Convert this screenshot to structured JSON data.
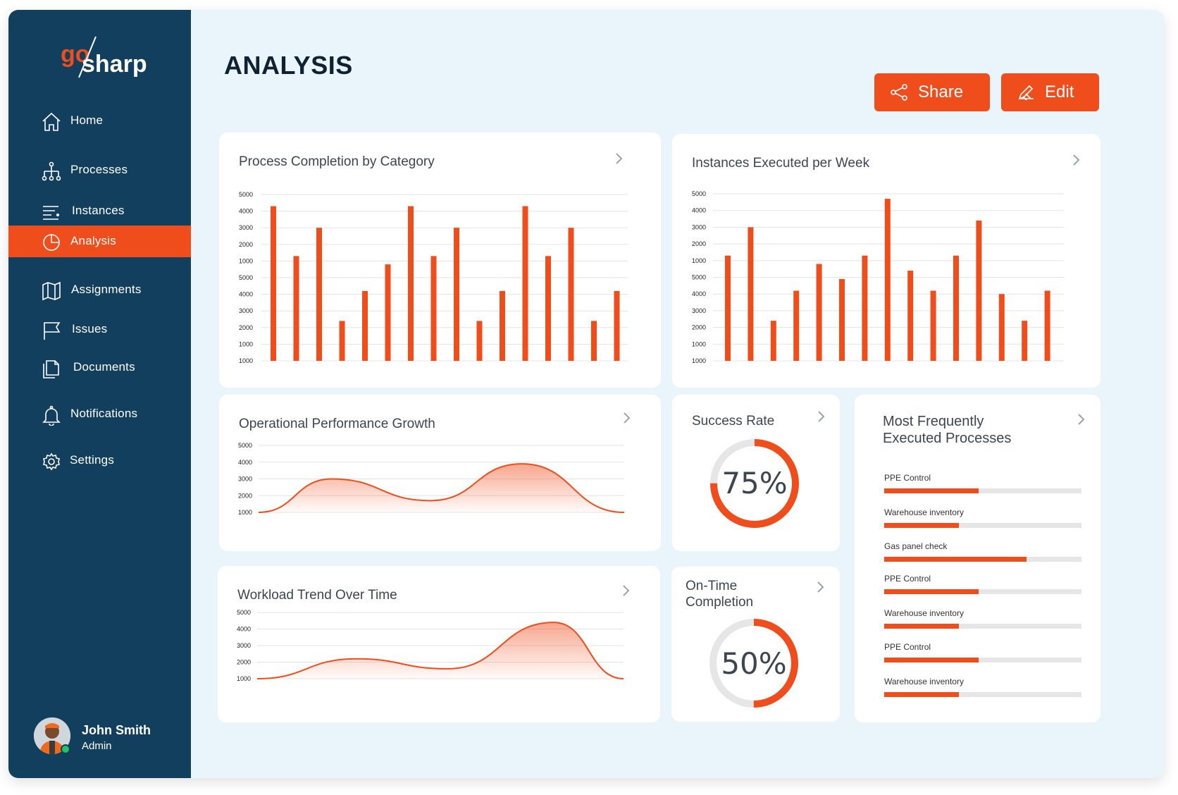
{
  "brand": {
    "logo_a": "go",
    "logo_b": "sharp",
    "accent": "#ef4d1c",
    "sidebar_bg": "#123f5e"
  },
  "page": {
    "title": "ANALYSIS"
  },
  "actions": {
    "share_label": "Share",
    "edit_label": "Edit"
  },
  "sidebar": {
    "items": [
      {
        "label": "Home",
        "icon": "home-icon"
      },
      {
        "label": "Processes",
        "icon": "process-tree-icon"
      },
      {
        "label": "Instances",
        "icon": "list-icon"
      },
      {
        "label": "Analysis",
        "icon": "pie-chart-icon",
        "active": true
      },
      {
        "label": "Assignments",
        "icon": "map-icon"
      },
      {
        "label": "Issues",
        "icon": "flag-icon"
      },
      {
        "label": "Documents",
        "icon": "documents-icon"
      },
      {
        "label": "Notifications",
        "icon": "bell-icon"
      },
      {
        "label": "Settings",
        "icon": "gear-icon"
      }
    ]
  },
  "user": {
    "name": "John Smith",
    "role": "Admin"
  },
  "cards": {
    "completion": {
      "title": "Process Completion by Category"
    },
    "instances": {
      "title": "Instances Executed per Week"
    },
    "growth": {
      "title": "Operational Performance Growth"
    },
    "workload": {
      "title": "Workload Trend Over Time"
    },
    "success": {
      "title": "Success Rate",
      "value": "75%",
      "fraction": 0.75
    },
    "ontime": {
      "title_line1": "On-Time",
      "title_line2": "Completion",
      "value": "50%",
      "fraction": 0.5
    },
    "frequent": {
      "title_line1": "Most Frequently",
      "title_line2": "Executed Processes",
      "items": [
        {
          "label": "PPE Control",
          "fraction": 0.48
        },
        {
          "label": "Warehouse inventory",
          "fraction": 0.38
        },
        {
          "label": "Gas panel check",
          "fraction": 0.72
        },
        {
          "label": "PPE Control",
          "fraction": 0.48
        },
        {
          "label": "Warehouse inventory",
          "fraction": 0.38
        },
        {
          "label": "PPE Control",
          "fraction": 0.48
        },
        {
          "label": "Warehouse inventory",
          "fraction": 0.38
        }
      ]
    }
  },
  "chart_data": [
    {
      "type": "bar",
      "title": "Process Completion by Category",
      "tick_labels": [
        "5000",
        "4000",
        "3000",
        "2000",
        "1000",
        "5000",
        "4000",
        "3000",
        "2000",
        "1000",
        "1000"
      ],
      "ylim": [
        0,
        10
      ],
      "values": [
        9.3,
        6.3,
        8.0,
        2.4,
        4.2,
        5.8,
        9.3,
        6.3,
        8.0,
        2.4,
        4.2,
        9.3,
        6.3,
        8.0,
        2.4,
        4.2
      ]
    },
    {
      "type": "bar",
      "title": "Instances Executed per Week",
      "tick_labels": [
        "5000",
        "4000",
        "3000",
        "2000",
        "1000",
        "5000",
        "4000",
        "3000",
        "2000",
        "1000",
        "1000"
      ],
      "ylim": [
        0,
        10
      ],
      "values": [
        6.3,
        8.0,
        2.4,
        4.2,
        5.8,
        4.9,
        6.3,
        9.7,
        5.4,
        4.2,
        6.3,
        8.4,
        4.0,
        2.4,
        4.2
      ]
    },
    {
      "type": "area",
      "title": "Operational Performance Growth",
      "tick_labels": [
        "5000",
        "4000",
        "3000",
        "2000",
        "1000"
      ],
      "ylim": [
        1000,
        5000
      ],
      "x": [
        0,
        0.2,
        0.47,
        0.72,
        1.0
      ],
      "y": [
        1000,
        3000,
        1700,
        3900,
        1000
      ]
    },
    {
      "type": "area",
      "title": "Workload Trend Over Time",
      "tick_labels": [
        "5000",
        "4000",
        "3000",
        "2000",
        "1000"
      ],
      "ylim": [
        1000,
        5000
      ],
      "x": [
        0,
        0.27,
        0.52,
        0.81,
        1.0
      ],
      "y": [
        1000,
        2200,
        1600,
        4400,
        1000
      ]
    }
  ]
}
